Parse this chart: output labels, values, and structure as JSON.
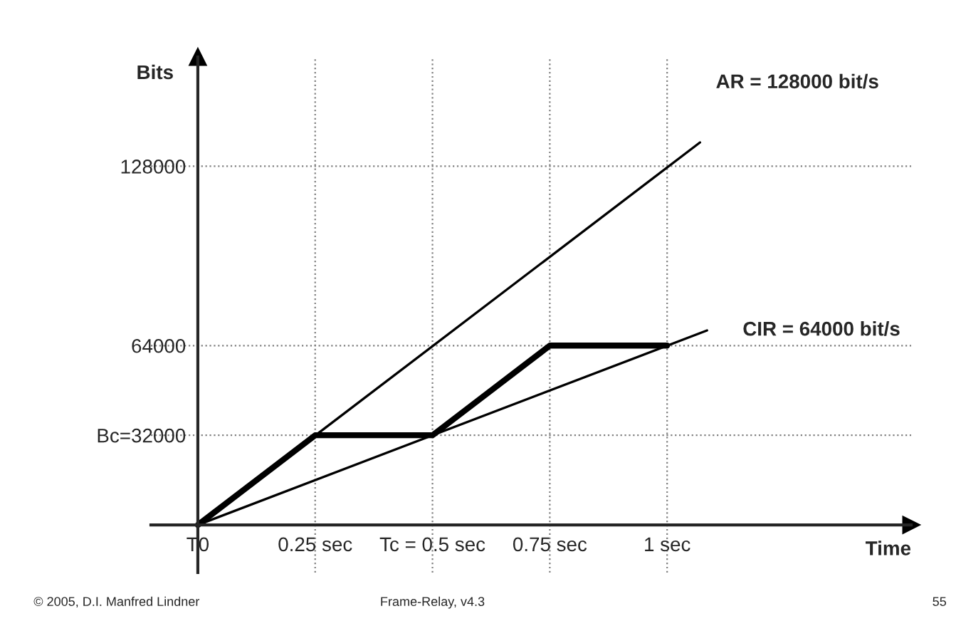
{
  "chart_data": {
    "type": "line",
    "xlabel": "Time",
    "ylabel": "Bits",
    "xlim": [
      -0.1,
      1.52
    ],
    "ylim": [
      -17000,
      167000
    ],
    "xticks": [
      {
        "value": 0,
        "label": "T0"
      },
      {
        "value": 0.25,
        "label": "0.25 sec"
      },
      {
        "value": 0.5,
        "label": "Tc = 0.5 sec"
      },
      {
        "value": 0.75,
        "label": "0.75 sec"
      },
      {
        "value": 1,
        "label": "1 sec"
      }
    ],
    "yticks": [
      {
        "value": 32000,
        "label": "Bc=32000"
      },
      64000,
      128000
    ],
    "grid": true,
    "legend": false,
    "marker": "none",
    "line_style": "solid",
    "series": [
      {
        "name": "AR = 128000 bit/s",
        "color": "#000000",
        "x": [
          0,
          1.07
        ],
        "values": [
          0,
          136500
        ]
      },
      {
        "name": "CIR = 64000 bit/s",
        "color": "#000000",
        "x": [
          0,
          1.085
        ],
        "values": [
          0,
          69400
        ]
      },
      {
        "color": "#000000",
        "x": [
          0,
          0.25,
          0.5,
          0.75,
          1
        ],
        "values": [
          0,
          32000,
          32000,
          64000,
          64000
        ]
      }
    ],
    "annotations": [
      "© 2005, D.I. Manfred Lindner",
      "Frame-Relay, v4.3",
      "55"
    ]
  }
}
